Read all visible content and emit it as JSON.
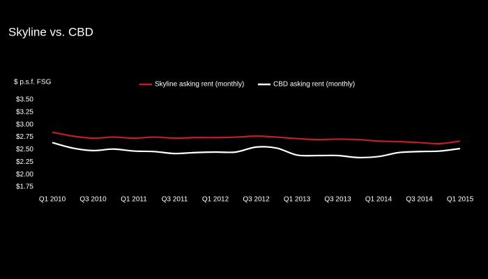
{
  "chart_data": {
    "type": "line",
    "title": "Skyline vs. CBD",
    "y_label": "$ p.s.f. FSG",
    "categories": [
      "Q1 2010",
      null,
      "Q3 2010",
      null,
      "Q1 2011",
      null,
      "Q3 2011",
      null,
      "Q1 2012",
      null,
      "Q3 2012",
      null,
      "Q1 2013",
      null,
      "Q3 2013",
      null,
      "Q1 2014",
      null,
      "Q3 2014",
      null,
      "Q1 2015"
    ],
    "series": [
      {
        "name": "Skyline asking rent (monthly)",
        "color": "#c0202a",
        "values": [
          2.85,
          2.77,
          2.73,
          2.75,
          2.73,
          2.75,
          2.73,
          2.74,
          2.74,
          2.75,
          2.77,
          2.75,
          2.72,
          2.7,
          2.71,
          2.7,
          2.67,
          2.66,
          2.64,
          2.62,
          2.67
        ]
      },
      {
        "name": "CBD asking rent (monthly)",
        "color": "#ffffff",
        "values": [
          2.64,
          2.53,
          2.48,
          2.51,
          2.47,
          2.46,
          2.42,
          2.44,
          2.45,
          2.45,
          2.55,
          2.53,
          2.39,
          2.38,
          2.38,
          2.34,
          2.36,
          2.44,
          2.46,
          2.47,
          2.52
        ]
      }
    ],
    "ylim": [
      1.75,
      3.5
    ],
    "yticks": [
      {
        "value": 1.75,
        "label": "$1.75"
      },
      {
        "value": 2.0,
        "label": "$2.00"
      },
      {
        "value": 2.25,
        "label": "$2.25"
      },
      {
        "value": 2.5,
        "label": "$2.50"
      },
      {
        "value": 2.75,
        "label": "$2.75"
      },
      {
        "value": 3.0,
        "label": "$3.00"
      },
      {
        "value": 3.25,
        "label": "$3.25"
      },
      {
        "value": 3.5,
        "label": "$3.50"
      }
    ],
    "legend": "top",
    "grid": false
  }
}
